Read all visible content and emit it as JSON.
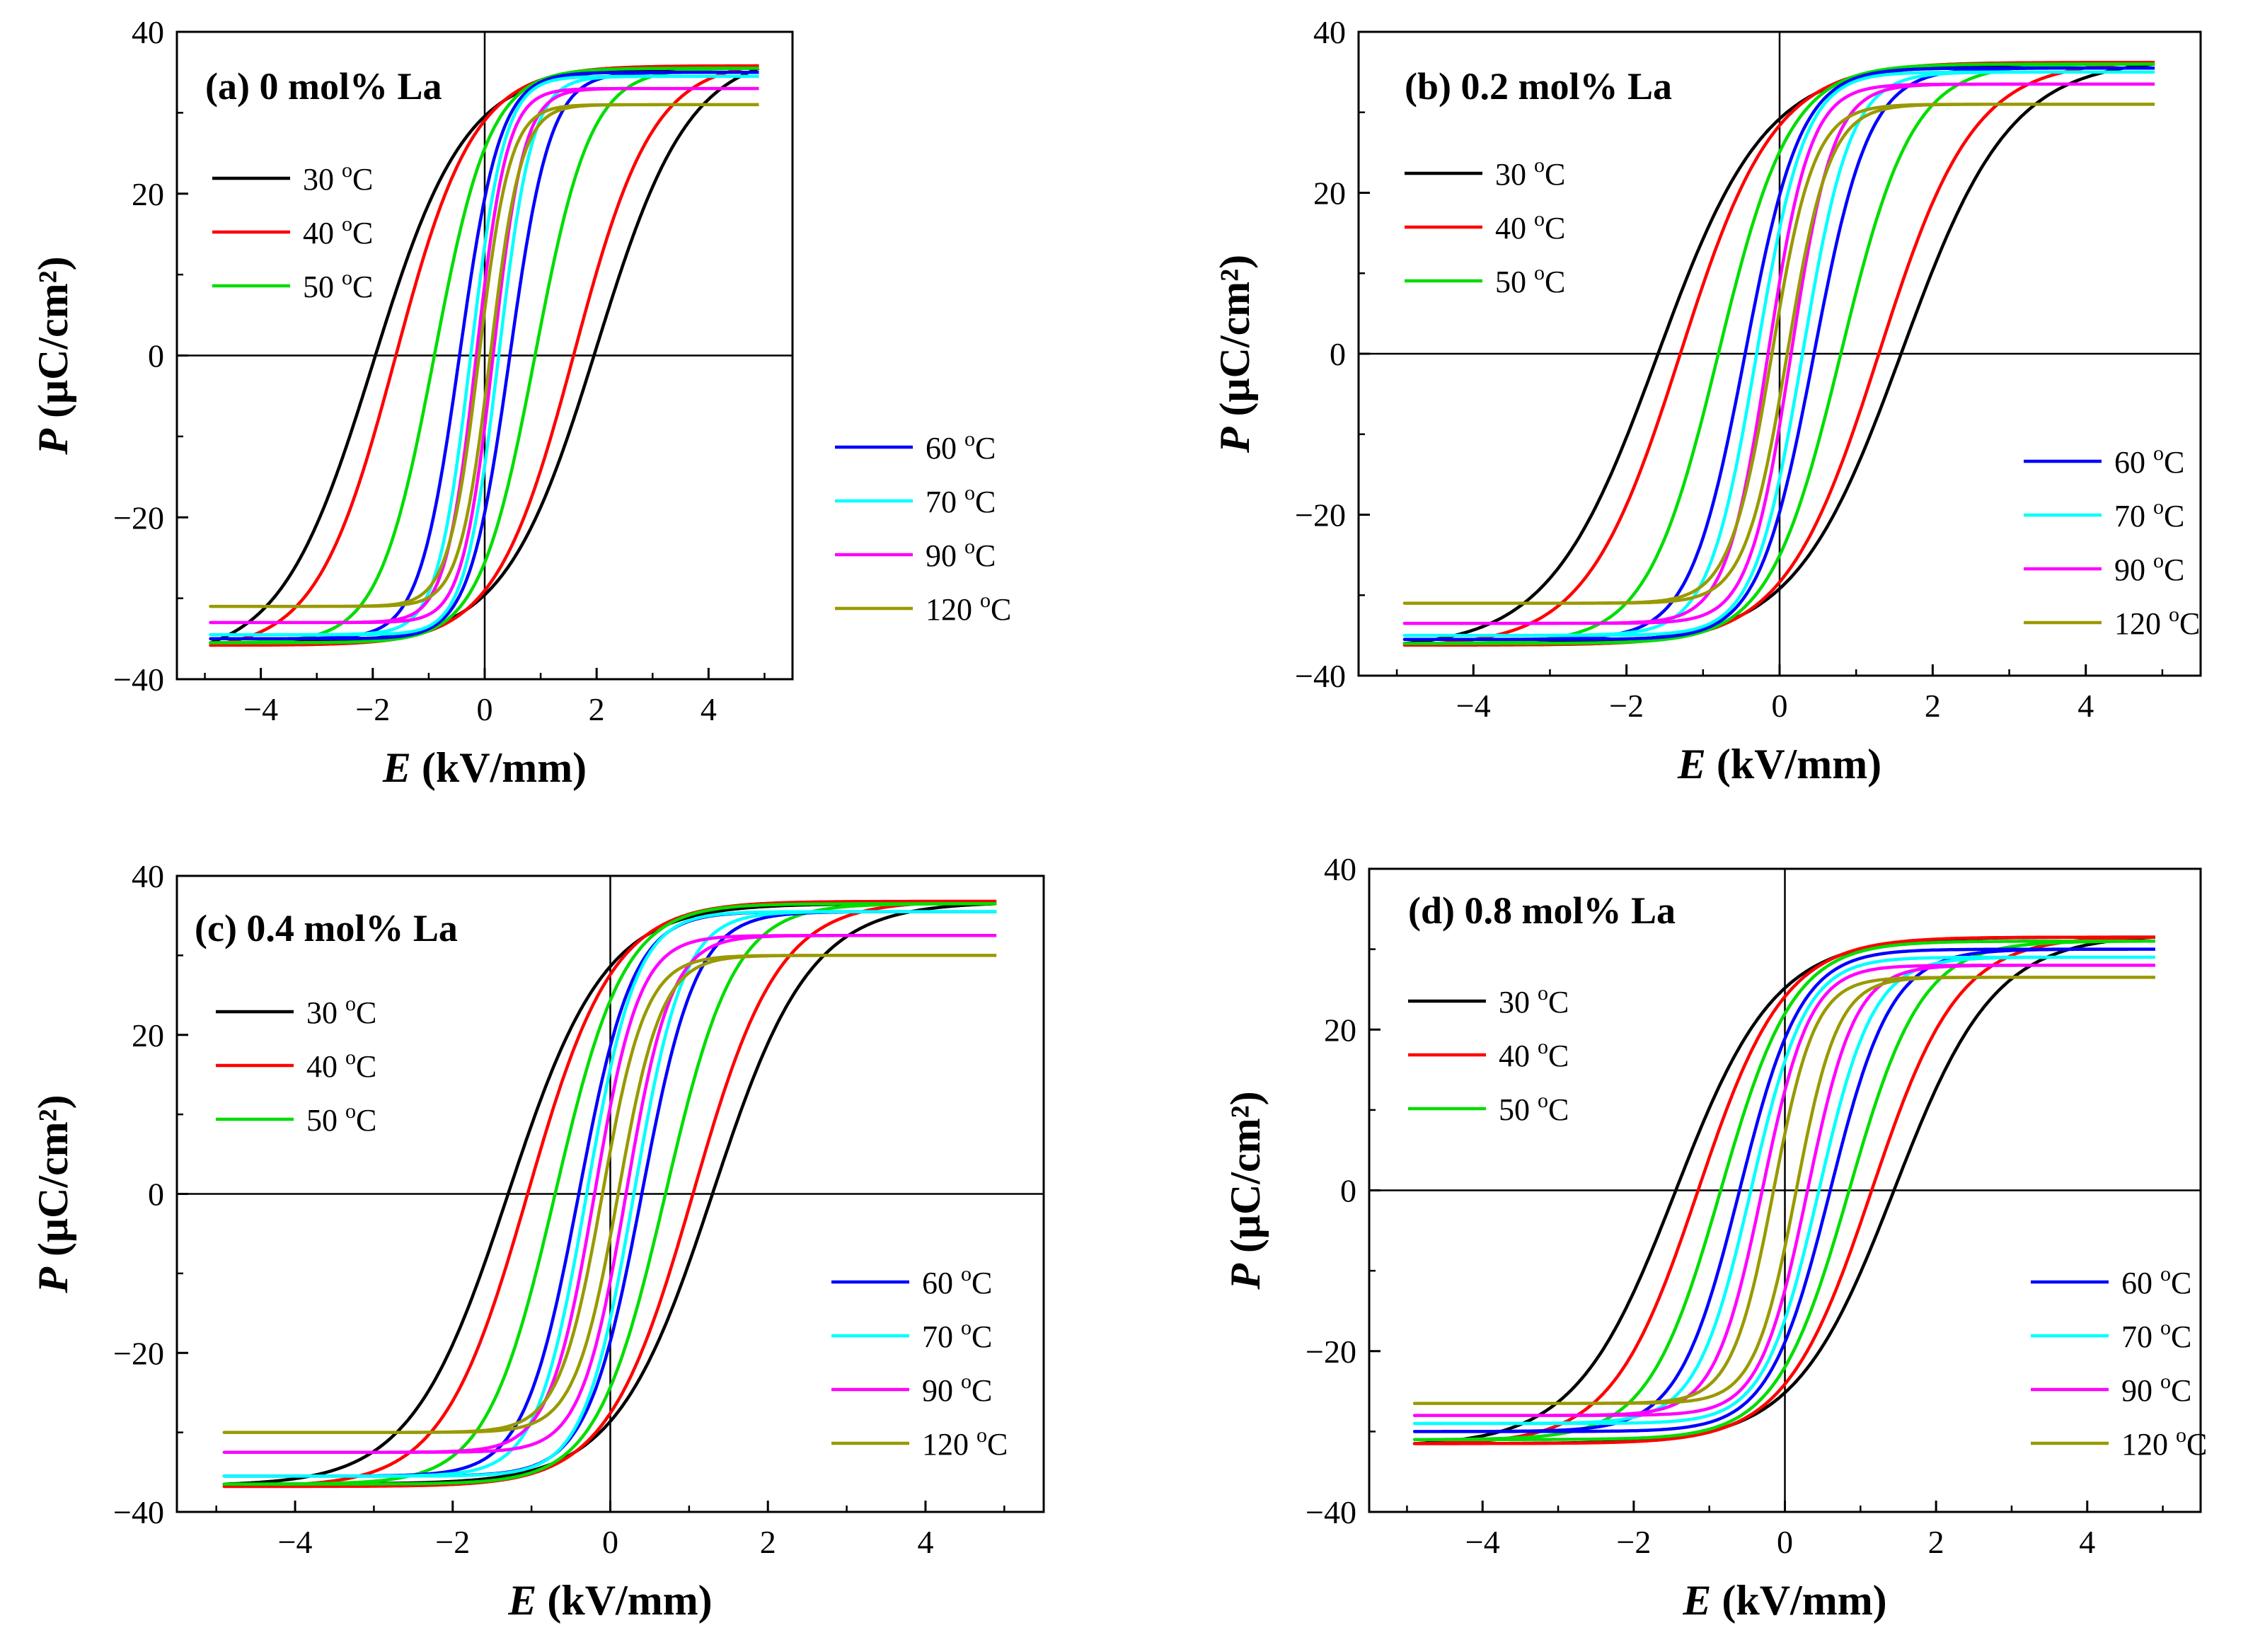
{
  "chart_data": [
    {
      "type": "line",
      "title": "(a) 0 mol% La",
      "xlabel": "E (kV/mm)",
      "ylabel": "P (μC/cm²)",
      "xlim": [
        -5.5,
        5.5
      ],
      "ylim": [
        -40,
        40
      ],
      "xticks": [
        -4,
        -2,
        0,
        2,
        4
      ],
      "yticks": [
        -40,
        -20,
        0,
        20,
        40
      ],
      "legend": [
        "upper-left",
        "lower-right"
      ],
      "series": [
        {
          "name": "30 °C",
          "color": "#000000",
          "emax": 4.9,
          "pmax": 35.5,
          "pr": 27.5,
          "ec": 2.0,
          "p0": 25.5
        },
        {
          "name": "40 °C",
          "color": "#ff0000",
          "emax": 4.9,
          "pmax": 35.8,
          "pr": 26.0,
          "ec": 1.6,
          "p0": 23.0
        },
        {
          "name": "50 °C",
          "color": "#00dd00",
          "emax": 4.9,
          "pmax": 35.5,
          "pr": 22.0,
          "ec": 0.9,
          "p0": 17.0
        },
        {
          "name": "60 °C",
          "color": "#0000ff",
          "emax": 4.9,
          "pmax": 35.0,
          "pr": 18.0,
          "ec": 0.45,
          "p0": 8.0
        },
        {
          "name": "70 °C",
          "color": "#00ffff",
          "emax": 4.9,
          "pmax": 34.5,
          "pr": 10.0,
          "ec": 0.25,
          "p0": 4.0
        },
        {
          "name": "90 °C",
          "color": "#ff00ff",
          "emax": 4.9,
          "pmax": 33.0,
          "pr": 5.0,
          "ec": 0.15,
          "p0": 2.0
        },
        {
          "name": "120 °C",
          "color": "#999900",
          "emax": 4.9,
          "pmax": 31.0,
          "pr": 3.0,
          "ec": 0.1,
          "p0": 0.5
        }
      ]
    },
    {
      "type": "line",
      "title": "(b) 0.2 mol% La",
      "xlabel": "E (kV/mm)",
      "ylabel": "P (μC/cm²)",
      "xlim": [
        -5.5,
        5.5
      ],
      "ylim": [
        -40,
        40
      ],
      "xticks": [
        -4,
        -2,
        0,
        2,
        4
      ],
      "yticks": [
        -40,
        -20,
        0,
        20,
        40
      ],
      "legend": [
        "upper-left",
        "lower-right"
      ],
      "series": [
        {
          "name": "30 °C",
          "color": "#000000",
          "emax": 4.9,
          "pmax": 36.0,
          "pr": 26.5,
          "ec": 1.6,
          "p0": 23.0
        },
        {
          "name": "40 °C",
          "color": "#ff0000",
          "emax": 4.9,
          "pmax": 36.2,
          "pr": 24.5,
          "ec": 1.3,
          "p0": 20.0
        },
        {
          "name": "50 °C",
          "color": "#00dd00",
          "emax": 4.9,
          "pmax": 36.0,
          "pr": 20.0,
          "ec": 0.8,
          "p0": 11.0
        },
        {
          "name": "60 °C",
          "color": "#0000ff",
          "emax": 4.9,
          "pmax": 35.5,
          "pr": 11.0,
          "ec": 0.45,
          "p0": 5.0
        },
        {
          "name": "70 °C",
          "color": "#00ffff",
          "emax": 4.9,
          "pmax": 35.0,
          "pr": 7.0,
          "ec": 0.3,
          "p0": 4.0
        },
        {
          "name": "90 °C",
          "color": "#ff00ff",
          "emax": 4.9,
          "pmax": 33.5,
          "pr": 4.5,
          "ec": 0.15,
          "p0": 2.0
        },
        {
          "name": "120 °C",
          "color": "#999900",
          "emax": 4.9,
          "pmax": 31.0,
          "pr": 3.0,
          "ec": 0.1,
          "p0": 0.5
        }
      ]
    },
    {
      "type": "line",
      "title": "(c) 0.4 mol% La",
      "xlabel": "E (kV/mm)",
      "ylabel": "P (μC/cm²)",
      "xlim": [
        -5.5,
        5.5
      ],
      "ylim": [
        -40,
        40
      ],
      "xticks": [
        -4,
        -2,
        0,
        2,
        4
      ],
      "yticks": [
        -40,
        -20,
        0,
        20,
        40
      ],
      "legend": [
        "upper-left",
        "lower-right"
      ],
      "series": [
        {
          "name": "30 °C",
          "color": "#000000",
          "emax": 4.9,
          "pmax": 36.5,
          "pr": 25.0,
          "ec": 1.3,
          "p0": 18.5
        },
        {
          "name": "40 °C",
          "color": "#ff0000",
          "emax": 4.9,
          "pmax": 36.8,
          "pr": 22.0,
          "ec": 1.05,
          "p0": 12.0
        },
        {
          "name": "50 °C",
          "color": "#00dd00",
          "emax": 4.9,
          "pmax": 36.5,
          "pr": 14.0,
          "ec": 0.7,
          "p0": 6.5
        },
        {
          "name": "60 °C",
          "color": "#0000ff",
          "emax": 4.9,
          "pmax": 35.5,
          "pr": 8.5,
          "ec": 0.4,
          "p0": 4.0
        },
        {
          "name": "70 °C",
          "color": "#00ffff",
          "emax": 4.9,
          "pmax": 35.5,
          "pr": 6.5,
          "ec": 0.3,
          "p0": 3.0
        },
        {
          "name": "90 °C",
          "color": "#ff00ff",
          "emax": 4.9,
          "pmax": 32.5,
          "pr": 3.5,
          "ec": 0.2,
          "p0": 2.0
        },
        {
          "name": "120 °C",
          "color": "#999900",
          "emax": 4.9,
          "pmax": 30.0,
          "pr": 2.5,
          "ec": 0.1,
          "p0": 0.5
        }
      ]
    },
    {
      "type": "line",
      "title": "(d) 0.8 mol% La",
      "xlabel": "E (kV/mm)",
      "ylabel": "P (μC/cm²)",
      "xlim": [
        -5.5,
        5.5
      ],
      "ylim": [
        -40,
        40
      ],
      "xticks": [
        -4,
        -2,
        0,
        2,
        4
      ],
      "yticks": [
        -40,
        -20,
        0,
        20,
        40
      ],
      "legend": [
        "upper-left",
        "lower-right"
      ],
      "series": [
        {
          "name": "30 °C",
          "color": "#000000",
          "emax": 4.9,
          "pmax": 31.5,
          "pr": 16.0,
          "ec": 1.45,
          "p0": 10.5
        },
        {
          "name": "40 °C",
          "color": "#ff0000",
          "emax": 4.9,
          "pmax": 31.5,
          "pr": 13.0,
          "ec": 1.15,
          "p0": 8.0
        },
        {
          "name": "50 °C",
          "color": "#00dd00",
          "emax": 4.9,
          "pmax": 31.0,
          "pr": 10.0,
          "ec": 0.85,
          "p0": 5.0
        },
        {
          "name": "60 °C",
          "color": "#0000ff",
          "emax": 4.9,
          "pmax": 30.0,
          "pr": 7.0,
          "ec": 0.6,
          "p0": 3.5
        },
        {
          "name": "70 °C",
          "color": "#00ffff",
          "emax": 4.9,
          "pmax": 29.0,
          "pr": 5.0,
          "ec": 0.45,
          "p0": 2.5
        },
        {
          "name": "90 °C",
          "color": "#ff00ff",
          "emax": 4.9,
          "pmax": 28.0,
          "pr": 3.5,
          "ec": 0.3,
          "p0": 2.0
        },
        {
          "name": "120 °C",
          "color": "#999900",
          "emax": 4.9,
          "pmax": 26.5,
          "pr": 2.0,
          "ec": 0.15,
          "p0": 1.0
        }
      ]
    }
  ]
}
